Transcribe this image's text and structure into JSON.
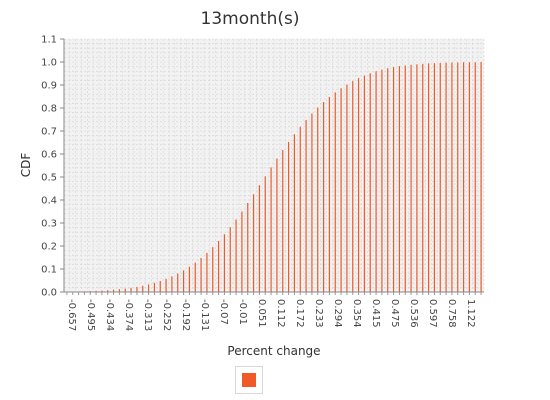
{
  "chart_data": {
    "type": "bar",
    "title": "13month(s)",
    "xlabel": "Percent change",
    "ylabel": "CDF",
    "ylim": [
      0,
      1.1
    ],
    "yticks": [
      "0.0",
      "0.1",
      "0.2",
      "0.3",
      "0.4",
      "0.5",
      "0.6",
      "0.7",
      "0.8",
      "0.9",
      "1.0",
      "1.1"
    ],
    "xticks": [
      "-0.657",
      "-0.495",
      "-0.434",
      "-0.374",
      "-0.313",
      "-0.252",
      "-0.192",
      "-0.131",
      "-0.07",
      "-0.01",
      "0.051",
      "0.112",
      "0.172",
      "0.233",
      "0.294",
      "0.354",
      "0.415",
      "0.475",
      "0.536",
      "0.597",
      "0.758",
      "1.122"
    ],
    "grid": true,
    "legend": "bottom-center",
    "color": "#f05a28",
    "values": [
      0.001,
      0.002,
      0.002,
      0.003,
      0.004,
      0.005,
      0.006,
      0.008,
      0.01,
      0.012,
      0.015,
      0.018,
      0.022,
      0.027,
      0.033,
      0.04,
      0.048,
      0.057,
      0.068,
      0.08,
      0.094,
      0.11,
      0.128,
      0.148,
      0.17,
      0.195,
      0.222,
      0.251,
      0.282,
      0.315,
      0.35,
      0.387,
      0.425,
      0.464,
      0.503,
      0.542,
      0.58,
      0.617,
      0.652,
      0.686,
      0.718,
      0.748,
      0.776,
      0.802,
      0.826,
      0.848,
      0.868,
      0.886,
      0.902,
      0.917,
      0.93,
      0.941,
      0.951,
      0.96,
      0.967,
      0.973,
      0.978,
      0.982,
      0.985,
      0.988,
      0.99,
      0.992,
      0.994,
      0.995,
      0.996,
      0.997,
      0.998,
      0.998,
      0.999,
      0.999,
      0.999,
      1.0
    ]
  }
}
